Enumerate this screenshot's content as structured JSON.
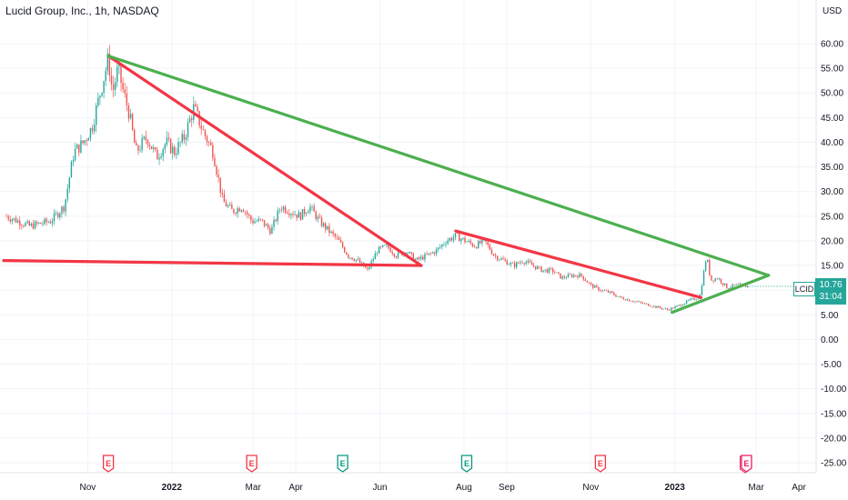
{
  "header": {
    "title": "Lucid Group, Inc., 1h, NASDAQ"
  },
  "price": {
    "symbol": "LCID",
    "last": "10.76",
    "countdown": "31:04"
  },
  "colors": {
    "up": "#26a69a",
    "down": "#ef5350",
    "red_line": "#f23645",
    "green_line": "#4caf50",
    "earnings_red": "#f23645",
    "earnings_green": "#089981",
    "earnings_pink": "#e91e63"
  },
  "chart_data": {
    "type": "candlestick",
    "y_unit": "USD",
    "ylim": [
      -27,
      65
    ],
    "y_ticks": [
      "60.00",
      "55.00",
      "50.00",
      "45.00",
      "40.00",
      "35.00",
      "30.00",
      "25.00",
      "20.00",
      "15.00",
      "10.00",
      "5.00",
      "0.00",
      "-5.00",
      "-10.00",
      "-15.00",
      "-20.00",
      "-25.00"
    ],
    "y_tick_values": [
      60,
      55,
      50,
      45,
      40,
      35,
      30,
      25,
      20,
      15,
      10,
      5,
      0,
      -5,
      -10,
      -15,
      -20,
      -25
    ],
    "x_ticks": [
      {
        "label": "Nov",
        "date": "2021-11-01",
        "bold": false
      },
      {
        "label": "2022",
        "date": "2022-01-01",
        "bold": true
      },
      {
        "label": "Mar",
        "date": "2022-03-01",
        "bold": false
      },
      {
        "label": "Apr",
        "date": "2022-04-01",
        "bold": false
      },
      {
        "label": "Jun",
        "date": "2022-06-01",
        "bold": false
      },
      {
        "label": "Aug",
        "date": "2022-08-01",
        "bold": false
      },
      {
        "label": "Sep",
        "date": "2022-09-01",
        "bold": false
      },
      {
        "label": "Nov",
        "date": "2022-11-01",
        "bold": false
      },
      {
        "label": "2023",
        "date": "2023-01-01",
        "bold": true
      },
      {
        "label": "Mar",
        "date": "2023-03-01",
        "bold": false
      },
      {
        "label": "Apr",
        "date": "2023-04-01",
        "bold": false
      }
    ],
    "price_path": [
      [
        "2021-09-03",
        25
      ],
      [
        "2021-09-20",
        23
      ],
      [
        "2021-10-05",
        24
      ],
      [
        "2021-10-15",
        27
      ],
      [
        "2021-10-22",
        38
      ],
      [
        "2021-10-29",
        40
      ],
      [
        "2021-11-04",
        43
      ],
      [
        "2021-11-10",
        50
      ],
      [
        "2021-11-16",
        57
      ],
      [
        "2021-11-19",
        50
      ],
      [
        "2021-11-23",
        55
      ],
      [
        "2021-11-27",
        50
      ],
      [
        "2021-12-01",
        46
      ],
      [
        "2021-12-06",
        38
      ],
      [
        "2021-12-14",
        41
      ],
      [
        "2021-12-21",
        37
      ],
      [
        "2021-12-28",
        40
      ],
      [
        "2022-01-03",
        38
      ],
      [
        "2022-01-10",
        41
      ],
      [
        "2022-01-17",
        47
      ],
      [
        "2022-01-24",
        42
      ],
      [
        "2022-01-31",
        38
      ],
      [
        "2022-02-07",
        28
      ],
      [
        "2022-02-14",
        26
      ],
      [
        "2022-02-21",
        27
      ],
      [
        "2022-02-28",
        24
      ],
      [
        "2022-03-07",
        24
      ],
      [
        "2022-03-14",
        22
      ],
      [
        "2022-03-21",
        27
      ],
      [
        "2022-03-28",
        26
      ],
      [
        "2022-04-04",
        25
      ],
      [
        "2022-04-11",
        27
      ],
      [
        "2022-04-18",
        24
      ],
      [
        "2022-04-25",
        22
      ],
      [
        "2022-05-02",
        20
      ],
      [
        "2022-05-09",
        17
      ],
      [
        "2022-05-16",
        16
      ],
      [
        "2022-05-23",
        14
      ],
      [
        "2022-05-30",
        18
      ],
      [
        "2022-06-06",
        19
      ],
      [
        "2022-06-13",
        17
      ],
      [
        "2022-06-20",
        18
      ],
      [
        "2022-06-27",
        16
      ],
      [
        "2022-07-05",
        17
      ],
      [
        "2022-07-12",
        18
      ],
      [
        "2022-07-19",
        20
      ],
      [
        "2022-07-26",
        21
      ],
      [
        "2022-08-02",
        20
      ],
      [
        "2022-08-09",
        19
      ],
      [
        "2022-08-16",
        20
      ],
      [
        "2022-08-23",
        17
      ],
      [
        "2022-08-30",
        16
      ],
      [
        "2022-09-06",
        15
      ],
      [
        "2022-09-13",
        16
      ],
      [
        "2022-09-20",
        15
      ],
      [
        "2022-09-27",
        14
      ],
      [
        "2022-10-04",
        14
      ],
      [
        "2022-10-11",
        12.5
      ],
      [
        "2022-10-18",
        13
      ],
      [
        "2022-10-25",
        13
      ],
      [
        "2022-11-01",
        11
      ],
      [
        "2022-11-08",
        10
      ],
      [
        "2022-11-15",
        9.5
      ],
      [
        "2022-11-22",
        8.5
      ],
      [
        "2022-11-29",
        8
      ],
      [
        "2022-12-06",
        7.5
      ],
      [
        "2022-12-13",
        7
      ],
      [
        "2022-12-20",
        6.5
      ],
      [
        "2022-12-27",
        6
      ],
      [
        "2023-01-05",
        7
      ],
      [
        "2023-01-12",
        8
      ],
      [
        "2023-01-19",
        8.5
      ],
      [
        "2023-01-24",
        17
      ],
      [
        "2023-01-27",
        12
      ],
      [
        "2023-02-01",
        12.5
      ],
      [
        "2023-02-08",
        10.5
      ],
      [
        "2023-02-15",
        11
      ],
      [
        "2023-02-22",
        10.8
      ],
      [
        "2023-02-24",
        10.76
      ]
    ],
    "annotations": [
      {
        "type": "trendline",
        "color": "red",
        "from": [
          "2021-09-01",
          16
        ],
        "to": [
          "2022-07-01",
          15
        ]
      },
      {
        "type": "trendline",
        "color": "red",
        "from": [
          "2021-11-16",
          57.5
        ],
        "to": [
          "2022-07-01",
          15
        ]
      },
      {
        "type": "trendline",
        "color": "red",
        "from": [
          "2022-07-26",
          22
        ],
        "to": [
          "2023-01-20",
          8.5
        ]
      },
      {
        "type": "trendline",
        "color": "green",
        "from": [
          "2021-11-16",
          57.5
        ],
        "to": [
          "2023-03-10",
          13
        ]
      },
      {
        "type": "trendline",
        "color": "green",
        "from": [
          "2022-12-30",
          5.5
        ],
        "to": [
          "2023-03-10",
          13
        ]
      }
    ],
    "events": [
      {
        "type": "earnings",
        "date": "2021-11-16",
        "status": "past-red",
        "label": "E"
      },
      {
        "type": "earnings",
        "date": "2022-02-28",
        "status": "past-red",
        "label": "E"
      },
      {
        "type": "earnings",
        "date": "2022-05-05",
        "status": "past-green",
        "label": "E"
      },
      {
        "type": "earnings",
        "date": "2022-08-03",
        "status": "past-green",
        "label": "E"
      },
      {
        "type": "earnings",
        "date": "2022-11-08",
        "status": "past-red",
        "label": "E"
      },
      {
        "type": "earnings",
        "date": "2023-02-22",
        "status": "upcoming",
        "label": "E"
      }
    ]
  }
}
